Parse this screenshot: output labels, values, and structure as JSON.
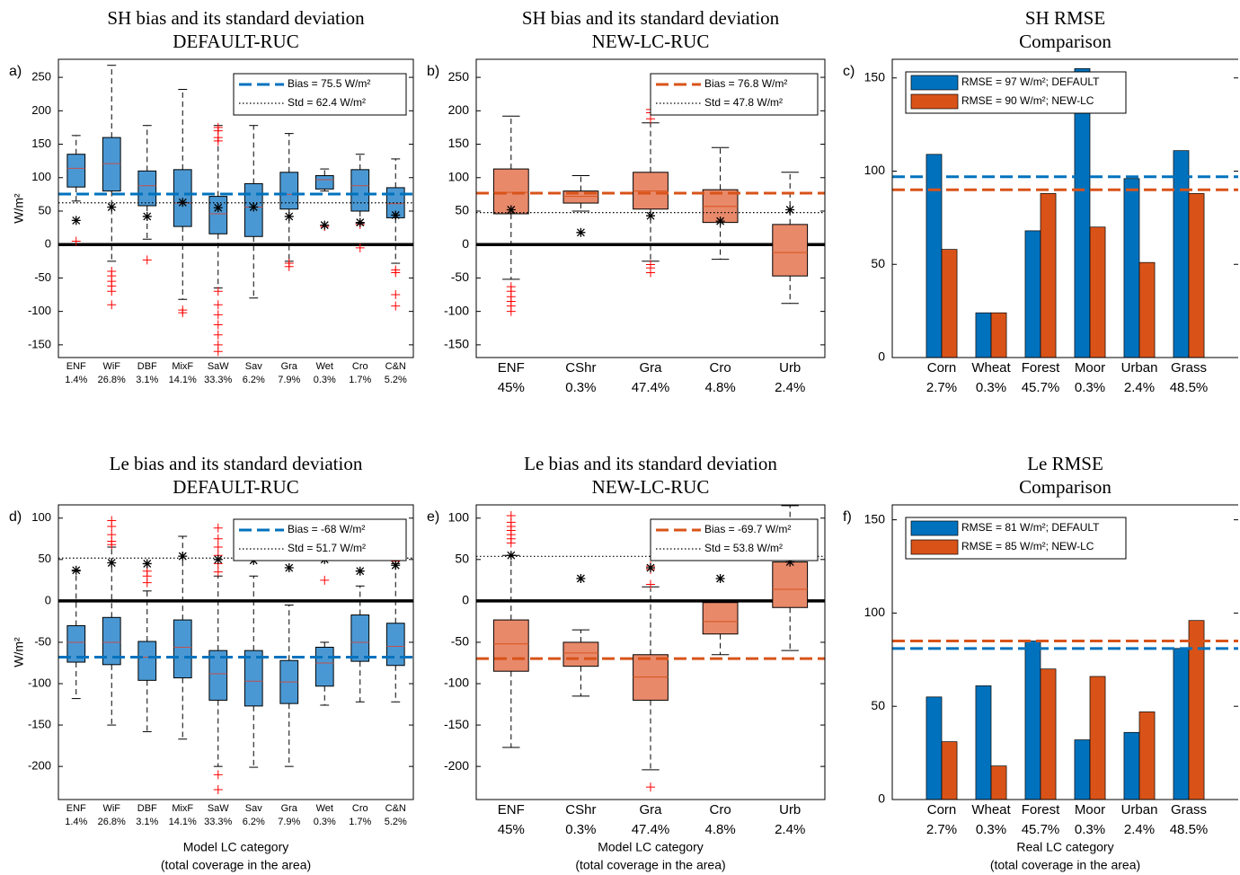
{
  "chart_data": [
    {
      "type": "box",
      "panel_label": "a)",
      "title": [
        "SH bias and its standard deviation",
        "DEFAULT-RUC"
      ],
      "ylabel": "W/m²",
      "categories": [
        "ENF",
        "WiF",
        "DBF",
        "MixF",
        "SaW",
        "Sav",
        "Gra",
        "Wet",
        "Cro",
        "C&N"
      ],
      "coverage": [
        "1.4%",
        "26.8%",
        "3.1%",
        "14.1%",
        "33.3%",
        "6.2%",
        "7.9%",
        "0.3%",
        "1.7%",
        "5.2%"
      ],
      "color": "#4a98d3",
      "median_color": "#c0504d",
      "zero_line": true,
      "legend_loc": "northeast",
      "ylim": [
        -169,
        277
      ],
      "yticks": [
        -150,
        -100,
        -50,
        0,
        50,
        100,
        150,
        200,
        250
      ],
      "reference_lines": [
        {
          "name": "Bias = 75.5 W/m²",
          "value": 75.5,
          "color": "#0072bd",
          "style": "dashed"
        },
        {
          "name": "Std = 62.4 W/m²",
          "value": 62.4,
          "color": "#000000",
          "style": "dotted"
        }
      ],
      "boxes": [
        {
          "low": 65,
          "q1": 86,
          "median": 114,
          "q3": 135,
          "high": 163,
          "mean": 36,
          "outliers": [
            5
          ]
        },
        {
          "low": -25,
          "q1": 80,
          "median": 121,
          "q3": 160,
          "high": 268,
          "mean": 56,
          "outliers": [
            -40,
            -47,
            -55,
            -62,
            -70,
            -90
          ]
        },
        {
          "low": 8,
          "q1": 58,
          "median": 88,
          "q3": 110,
          "high": 178,
          "mean": 42,
          "outliers": [
            -23
          ]
        },
        {
          "low": -82,
          "q1": 27,
          "median": 62,
          "q3": 112,
          "high": 232,
          "mean": 63,
          "outliers": [
            -98,
            -102
          ]
        },
        {
          "low": -65,
          "q1": 16,
          "median": 46,
          "q3": 72,
          "high": 178,
          "mean": 55,
          "outliers": [
            155,
            160,
            170,
            175,
            -70,
            -90,
            -105,
            -120,
            -135,
            -150,
            -160
          ]
        },
        {
          "low": -80,
          "q1": 12,
          "median": 56,
          "q3": 91,
          "high": 178,
          "mean": 56,
          "outliers": []
        },
        {
          "low": -25,
          "q1": 53,
          "median": 75,
          "q3": 108,
          "high": 166,
          "mean": 42,
          "outliers": [
            -28,
            -33
          ]
        },
        {
          "low": 80,
          "q1": 83,
          "median": 97,
          "q3": 103,
          "high": 113,
          "mean": 29,
          "outliers": [
            27
          ]
        },
        {
          "low": 32,
          "q1": 50,
          "median": 88,
          "q3": 112,
          "high": 135,
          "mean": 33,
          "outliers": [
            30,
            -5
          ]
        },
        {
          "low": -28,
          "q1": 40,
          "median": 61,
          "q3": 85,
          "high": 128,
          "mean": 44,
          "outliers": [
            -38,
            -42,
            -75,
            -92
          ]
        }
      ]
    },
    {
      "type": "box",
      "panel_label": "b)",
      "title": [
        "SH bias and its standard deviation",
        "NEW-LC-RUC"
      ],
      "categories": [
        "ENF",
        "CShr",
        "Gra",
        "Cro",
        "Urb"
      ],
      "coverage": [
        "45%",
        "0.3%",
        "47.4%",
        "4.8%",
        "2.4%"
      ],
      "color": "#e8896a",
      "median_color": "#d95319",
      "zero_line": true,
      "legend_loc": "northeast",
      "ylim": [
        -169,
        277
      ],
      "yticks": [
        -150,
        -100,
        -50,
        0,
        50,
        100,
        150,
        200,
        250
      ],
      "reference_lines": [
        {
          "name": "Bias = 76.8 W/m²",
          "value": 76.8,
          "color": "#d95319",
          "style": "dashed"
        },
        {
          "name": "Std = 47.8 W/m²",
          "value": 47.8,
          "color": "#000000",
          "style": "dotted"
        }
      ],
      "boxes": [
        {
          "low": -52,
          "q1": 46,
          "median": 78,
          "q3": 113,
          "high": 192,
          "mean": 52,
          "outliers": [
            -63,
            -70,
            -78,
            -85,
            -92,
            -100
          ]
        },
        {
          "low": 50,
          "q1": 62,
          "median": 72,
          "q3": 80,
          "high": 103,
          "mean": 18,
          "outliers": []
        },
        {
          "low": -25,
          "q1": 53,
          "median": 80,
          "q3": 108,
          "high": 182,
          "mean": 43,
          "outliers": [
            188,
            197,
            202,
            -30,
            -35,
            -42
          ]
        },
        {
          "low": -22,
          "q1": 33,
          "median": 57,
          "q3": 82,
          "high": 145,
          "mean": 35,
          "outliers": []
        },
        {
          "low": -88,
          "q1": -47,
          "median": -12,
          "q3": 30,
          "high": 108,
          "mean": 52,
          "outliers": []
        }
      ]
    },
    {
      "type": "bar",
      "panel_label": "c)",
      "title": [
        "SH RMSE",
        "Comparison"
      ],
      "categories": [
        "Corn",
        "Wheat",
        "Forest",
        "Moor",
        "Urban",
        "Grass"
      ],
      "coverage": [
        "2.7%",
        "0.3%",
        "45.7%",
        "0.3%",
        "2.4%",
        "48.5%"
      ],
      "legend_loc": "northwest",
      "ylim": [
        0,
        160
      ],
      "yticks": [
        0,
        50,
        100,
        150
      ],
      "series": [
        {
          "name": "RMSE = 97 W/m²; DEFAULT",
          "color": "#0072bd",
          "rmse": 97,
          "values": [
            109,
            24,
            68,
            155,
            96,
            111
          ]
        },
        {
          "name": "RMSE = 90 W/m²; NEW-LC",
          "color": "#d95319",
          "rmse": 90,
          "values": [
            58,
            24,
            88,
            70,
            51,
            88
          ]
        }
      ]
    },
    {
      "type": "box",
      "panel_label": "d)",
      "title": [
        "Le bias and its standard deviation",
        "DEFAULT-RUC"
      ],
      "ylabel": "W/m²",
      "xlabel": [
        "Model LC category",
        "(total coverage in the area)"
      ],
      "categories": [
        "ENF",
        "WiF",
        "DBF",
        "MixF",
        "SaW",
        "Sav",
        "Gra",
        "Wet",
        "Cro",
        "C&N"
      ],
      "coverage": [
        "1.4%",
        "26.8%",
        "3.1%",
        "14.1%",
        "33.3%",
        "6.2%",
        "7.9%",
        "0.3%",
        "1.7%",
        "5.2%"
      ],
      "color": "#4a98d3",
      "median_color": "#c0504d",
      "zero_line": true,
      "legend_loc": "northeast",
      "ylim": [
        -240,
        116
      ],
      "yticks": [
        -200,
        -150,
        -100,
        -50,
        0,
        50,
        100
      ],
      "reference_lines": [
        {
          "name": "Bias = -68 W/m²",
          "value": -68,
          "color": "#0072bd",
          "style": "dashed"
        },
        {
          "name": "Std = 51.7 W/m²",
          "value": 51.7,
          "color": "#000000",
          "style": "dotted"
        }
      ],
      "boxes": [
        {
          "low": -118,
          "q1": -74,
          "median": -50,
          "q3": -30,
          "high": 36,
          "mean": 37,
          "outliers": []
        },
        {
          "low": -150,
          "q1": -77,
          "median": -50,
          "q3": -20,
          "high": 65,
          "mean": 46,
          "outliers": [
            68,
            72,
            80,
            90,
            97
          ]
        },
        {
          "low": -158,
          "q1": -96,
          "median": -68,
          "q3": -49,
          "high": 12,
          "mean": 45,
          "outliers": [
            22,
            30,
            36
          ]
        },
        {
          "low": -167,
          "q1": -93,
          "median": -56,
          "q3": -23,
          "high": 78,
          "mean": 54,
          "outliers": []
        },
        {
          "low": -200,
          "q1": -120,
          "median": -88,
          "q3": -60,
          "high": 30,
          "mean": 50,
          "outliers": [
            35,
            45,
            55,
            65,
            75,
            88,
            -210,
            -228
          ]
        },
        {
          "low": -201,
          "q1": -127,
          "median": -97,
          "q3": -60,
          "high": 30,
          "mean": 49,
          "outliers": []
        },
        {
          "low": -200,
          "q1": -124,
          "median": -98,
          "q3": -72,
          "high": -5,
          "mean": 40,
          "outliers": []
        },
        {
          "low": -126,
          "q1": -103,
          "median": -75,
          "q3": -56,
          "high": -50,
          "mean": 50,
          "outliers": [
            25
          ]
        },
        {
          "low": -122,
          "q1": -73,
          "median": -50,
          "q3": -17,
          "high": 18,
          "mean": 36,
          "outliers": []
        },
        {
          "low": -122,
          "q1": -78,
          "median": -55,
          "q3": -27,
          "high": 45,
          "mean": 43,
          "outliers": [
            48,
            52
          ]
        }
      ]
    },
    {
      "type": "box",
      "panel_label": "e)",
      "title": [
        "Le bias and its standard deviation",
        "NEW-LC-RUC"
      ],
      "xlabel": [
        "Model LC category",
        "(total coverage in the area)"
      ],
      "categories": [
        "ENF",
        "CShr",
        "Gra",
        "Cro",
        "Urb"
      ],
      "coverage": [
        "45%",
        "0.3%",
        "47.4%",
        "4.8%",
        "2.4%"
      ],
      "color": "#e8896a",
      "median_color": "#d95319",
      "zero_line": true,
      "legend_loc": "northeast",
      "ylim": [
        -240,
        116
      ],
      "yticks": [
        -200,
        -150,
        -100,
        -50,
        0,
        50,
        100
      ],
      "reference_lines": [
        {
          "name": "Bias = -69.7 W/m²",
          "value": -69.7,
          "color": "#d95319",
          "style": "dashed"
        },
        {
          "name": "Std = 53.8 W/m²",
          "value": 53.8,
          "color": "#000000",
          "style": "dotted"
        }
      ],
      "boxes": [
        {
          "low": -177,
          "q1": -85,
          "median": -52,
          "q3": -23,
          "high": 55,
          "mean": 55,
          "outliers": [
            70,
            75,
            80,
            85,
            90,
            95,
            103
          ]
        },
        {
          "low": -115,
          "q1": -79,
          "median": -63,
          "q3": -50,
          "high": -35,
          "mean": 27,
          "outliers": []
        },
        {
          "low": -204,
          "q1": -120,
          "median": -92,
          "q3": -65,
          "high": 17,
          "mean": 40,
          "outliers": [
            20,
            38,
            42,
            -225
          ]
        },
        {
          "low": -65,
          "q1": -40,
          "median": -25,
          "q3": -2,
          "high": 0,
          "mean": 27,
          "outliers": []
        },
        {
          "low": -60,
          "q1": -8,
          "median": 14,
          "q3": 47,
          "high": 115,
          "mean": 47,
          "outliers": []
        }
      ]
    },
    {
      "type": "bar",
      "panel_label": "f)",
      "title": [
        "Le RMSE",
        "Comparison"
      ],
      "xlabel": [
        "Real LC category",
        "(total coverage in the area)"
      ],
      "categories": [
        "Corn",
        "Wheat",
        "Forest",
        "Moor",
        "Urban",
        "Grass"
      ],
      "coverage": [
        "2.7%",
        "0.3%",
        "45.7%",
        "0.3%",
        "2.4%",
        "48.5%"
      ],
      "legend_loc": "northwest",
      "ylim": [
        0,
        158
      ],
      "yticks": [
        0,
        50,
        100,
        150
      ],
      "series": [
        {
          "name": "RMSE = 81 W/m²; DEFAULT",
          "color": "#0072bd",
          "rmse": 81,
          "values": [
            55,
            61,
            85,
            32,
            36,
            81
          ]
        },
        {
          "name": "RMSE = 85 W/m²; NEW-LC",
          "color": "#d95319",
          "rmse": 85,
          "values": [
            31,
            18,
            70,
            66,
            47,
            96
          ]
        }
      ]
    }
  ]
}
